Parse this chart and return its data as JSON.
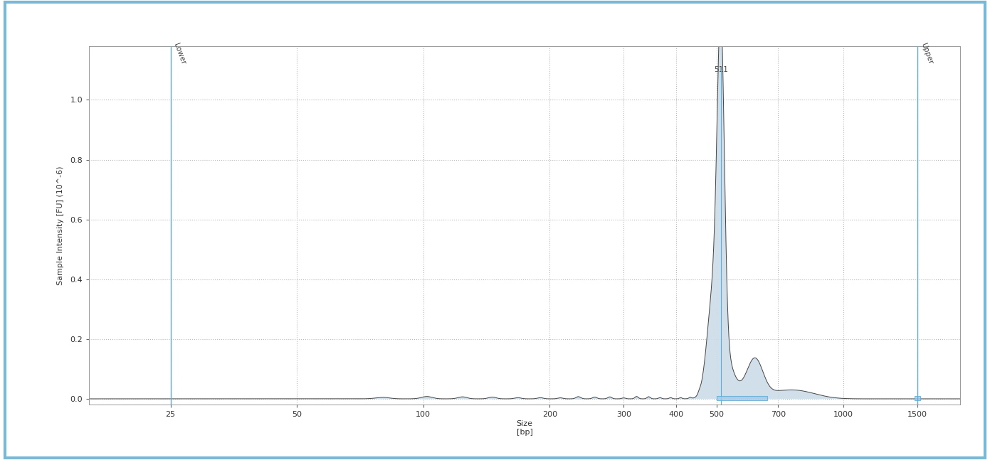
{
  "title": "",
  "xlabel": "Size\n[bp]",
  "ylabel": "Sample Intensity [FU] (10^-6)",
  "ylim": [
    -0.02,
    1.18
  ],
  "yticks": [
    0.0,
    0.2,
    0.4,
    0.6,
    0.8,
    1.0
  ],
  "xtick_positions": [
    25,
    50,
    100,
    200,
    300,
    400,
    500,
    700,
    1000,
    1500
  ],
  "xtick_labels": [
    "25",
    "50",
    "100",
    "200",
    "300",
    "400",
    "500",
    "700",
    "1000",
    "1500"
  ],
  "lower_marker_bp": 25,
  "upper_marker_bp": 1500,
  "peak_bp": 511,
  "background_color": "#ffffff",
  "outer_border_color": "#7ab8d8",
  "vertical_line_color": "#5bacd6",
  "fill_color": "#ccdce8",
  "fill_edge_color": "#444444",
  "highlight_box_color": "#aac8e8",
  "grid_color": "#b8b8b8",
  "xlim_min_bp": 16,
  "xlim_max_bp": 1900
}
